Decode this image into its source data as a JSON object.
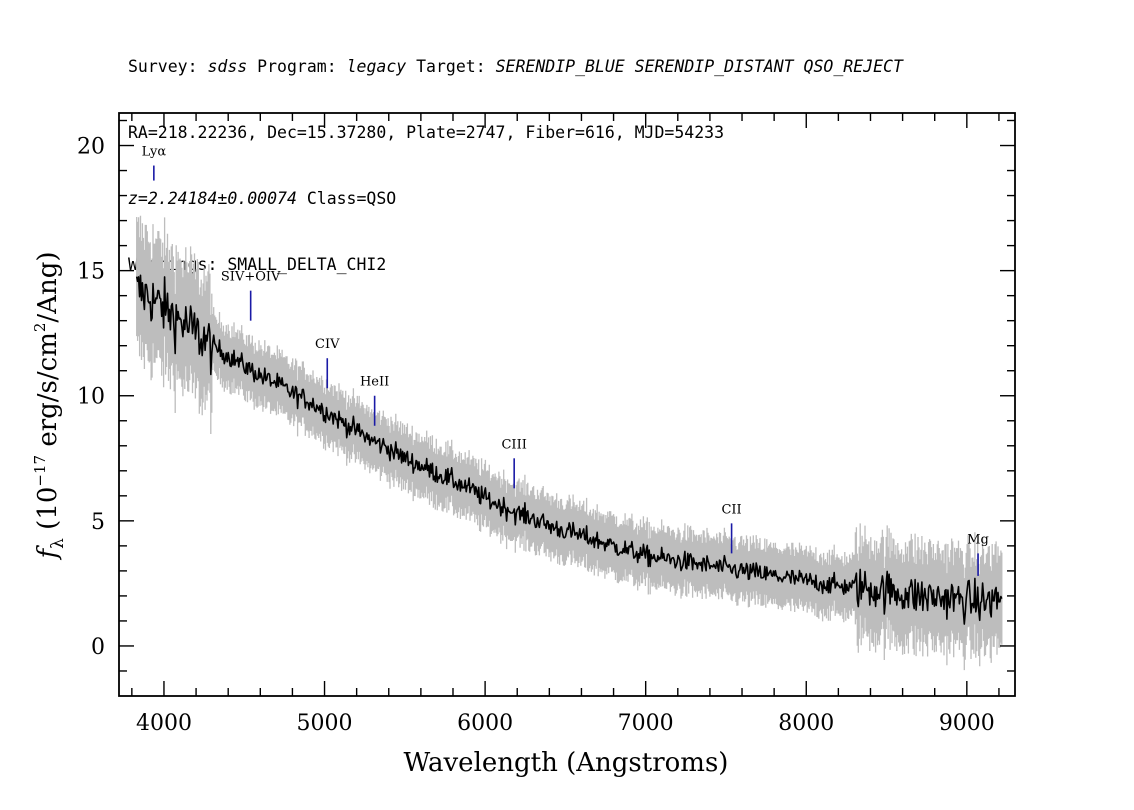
{
  "header": {
    "line1": {
      "survey_label": "Survey: ",
      "survey_value": "sdss",
      "program_label": " Program: ",
      "program_value": "legacy",
      "target_label": " Target: ",
      "target_value": "SERENDIP_BLUE SERENDIP_DISTANT QSO_REJECT"
    },
    "line2": "RA=218.22236, Dec=15.37280, Plate=2747, Fiber=616, MJD=54233",
    "line3": {
      "z_value": "z=2.24184±0.00074",
      "class_text": " Class=QSO"
    },
    "line4": "Warnings: SMALL_DELTA_CHI2"
  },
  "chart_data": {
    "type": "line",
    "xlabel": "Wavelength (Angstroms)",
    "ylabel_pre": "f",
    "ylabel_sub": "λ",
    "ylabel_mid": " (10",
    "ylabel_exp": "−17",
    "ylabel_post": " erg/s/cm",
    "ylabel_exp2": "2",
    "ylabel_end": "/Ang)",
    "xlim": [
      3720,
      9300
    ],
    "ylim": [
      -2,
      21.3
    ],
    "x_ticks": [
      4000,
      5000,
      6000,
      7000,
      8000,
      9000
    ],
    "y_ticks": [
      0,
      5,
      10,
      15,
      20
    ],
    "x_tick_labels": [
      "4000",
      "5000",
      "6000",
      "7000",
      "8000",
      "9000"
    ],
    "y_tick_labels": [
      "0",
      "5",
      "10",
      "15",
      "20"
    ],
    "grid": false,
    "colors": {
      "flux": "#000000",
      "error_band": "#bdbdbd",
      "line_marker": "#1a1aa6"
    },
    "series": [
      {
        "role": "flux",
        "x": [
          3830,
          3900,
          4000,
          4100,
          4200,
          4300,
          4400,
          4500,
          4600,
          4700,
          4800,
          4900,
          5000,
          5100,
          5200,
          5300,
          5400,
          5500,
          5600,
          5700,
          5800,
          5900,
          6000,
          6100,
          6200,
          6300,
          6400,
          6500,
          6600,
          6700,
          6800,
          6900,
          7000,
          7100,
          7200,
          7300,
          7400,
          7500,
          7600,
          7700,
          7800,
          7900,
          8000,
          8100,
          8200,
          8300,
          8400,
          8500,
          8600,
          8700,
          8800,
          8900,
          9000,
          9100,
          9220
        ],
        "y": [
          14.2,
          14.0,
          13.5,
          13.0,
          12.5,
          12.0,
          11.6,
          11.2,
          10.8,
          10.5,
          10.1,
          9.8,
          9.4,
          9.0,
          8.6,
          8.2,
          7.9,
          7.5,
          7.2,
          6.9,
          6.6,
          6.3,
          5.9,
          5.6,
          5.3,
          5.1,
          4.8,
          4.6,
          4.4,
          4.2,
          4.0,
          3.8,
          3.6,
          3.5,
          3.4,
          3.3,
          3.2,
          3.1,
          3.0,
          2.9,
          2.8,
          2.7,
          2.6,
          2.5,
          2.4,
          2.35,
          2.3,
          2.2,
          2.1,
          2.0,
          1.95,
          1.9,
          1.8,
          1.75,
          1.9
        ]
      }
    ],
    "emission_lines": [
      {
        "label": "Lyα",
        "wavelength": 3937,
        "y_low": 18.6,
        "y_high": 19.2
      },
      {
        "label": "SIV+OIV",
        "wavelength": 4540,
        "y_low": 13.0,
        "y_high": 14.2
      },
      {
        "label": "CIV",
        "wavelength": 5017,
        "y_low": 10.3,
        "y_high": 11.5
      },
      {
        "label": "HeII",
        "wavelength": 5312,
        "y_low": 8.8,
        "y_high": 10.0
      },
      {
        "label": "CIII",
        "wavelength": 6181,
        "y_low": 6.3,
        "y_high": 7.5
      },
      {
        "label": "CII",
        "wavelength": 7535,
        "y_low": 3.7,
        "y_high": 4.9
      },
      {
        "label": "Mg",
        "wavelength": 9070,
        "y_low": 2.8,
        "y_high": 3.7
      }
    ]
  }
}
